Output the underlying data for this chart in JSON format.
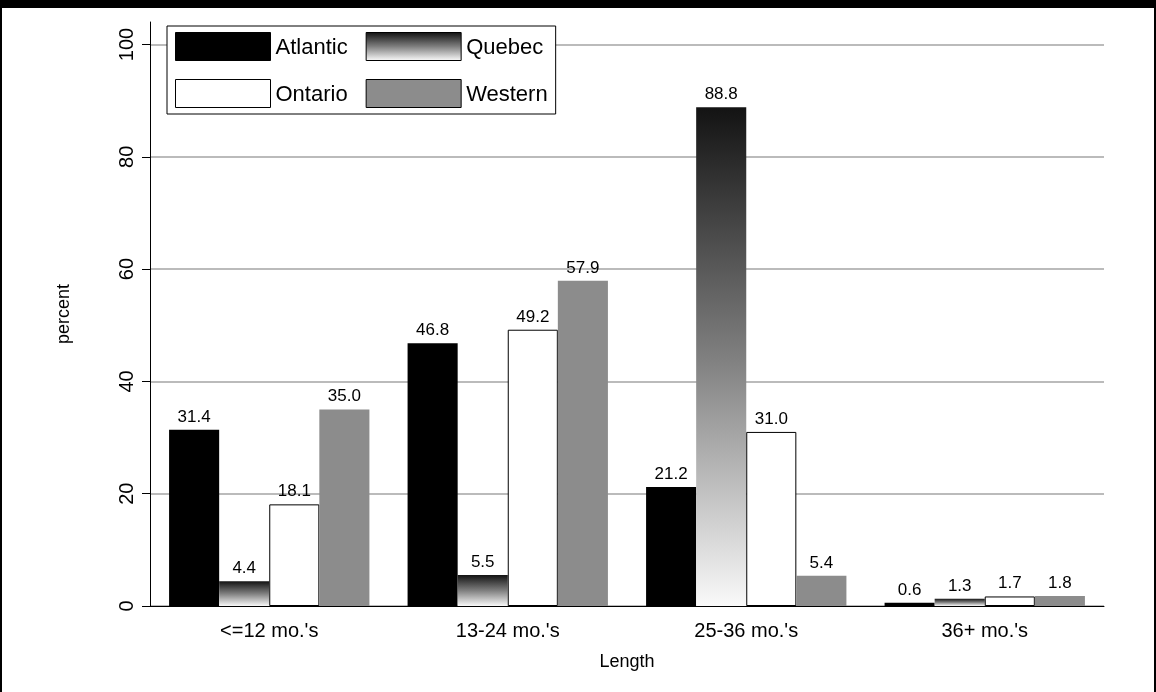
{
  "chart_data": {
    "type": "bar",
    "xlabel": "Length",
    "ylabel": "percent",
    "categories": [
      "<=12 mo.'s",
      "13-24 mo.'s",
      "25-36 mo.'s",
      "36+ mo.'s"
    ],
    "series": [
      {
        "name": "Atlantic",
        "color": "#000000",
        "values": [
          31.4,
          46.8,
          21.2,
          0.6
        ],
        "value_labels": [
          "31.4",
          "46.8",
          "21.2",
          "0.6"
        ]
      },
      {
        "name": "Quebec",
        "color": "#7f7f7f",
        "values": [
          4.4,
          5.5,
          88.8,
          1.3
        ],
        "value_labels": [
          "4.4",
          "5.5",
          "88.8",
          "1.3"
        ]
      },
      {
        "name": "Ontario",
        "color": "#ffffff",
        "values": [
          18.1,
          49.2,
          31.0,
          1.7
        ],
        "value_labels": [
          "18.1",
          "49.2",
          "31.0",
          "1.7"
        ]
      },
      {
        "name": "Western",
        "color": "#8c8c8c",
        "values": [
          35.0,
          57.9,
          5.4,
          1.8
        ],
        "value_labels": [
          "35.0",
          "57.9",
          "5.4",
          "1.8"
        ]
      }
    ],
    "ylim": [
      0,
      104
    ],
    "yticks": [
      0,
      20,
      40,
      60,
      80,
      100
    ],
    "grid": "y",
    "legend": "top left"
  }
}
